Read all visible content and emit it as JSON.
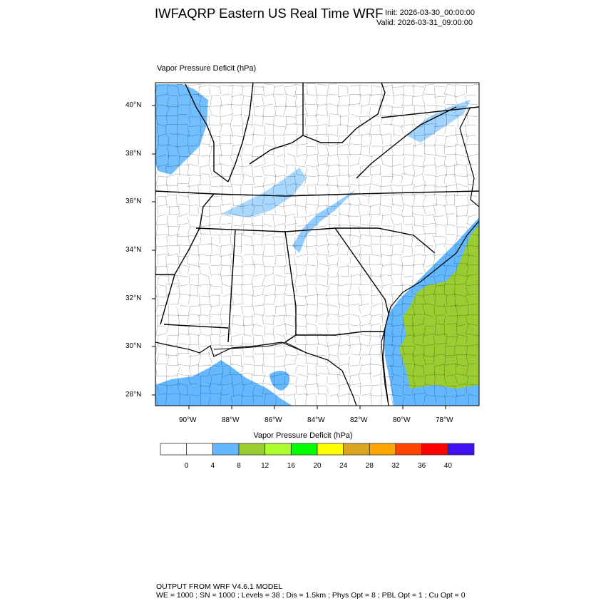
{
  "header": {
    "title": "IWFAQRP Eastern US Real Time WRF",
    "init": "Init: 2026-03-30_00:00:00",
    "valid": "Valid: 2026-03-31_09:00:00"
  },
  "map": {
    "field_label": "Vapor Pressure Deficit   (hPa)",
    "lat_ticks": [
      "40°N",
      "38°N",
      "36°N",
      "34°N",
      "32°N",
      "30°N",
      "28°N"
    ],
    "lon_ticks": [
      "90°W",
      "88°W",
      "86°W",
      "84°W",
      "82°W",
      "80°W",
      "78°W"
    ]
  },
  "colorbar": {
    "title": "Vapor Pressure Deficit  (hPa)",
    "colors": [
      "#ffffff",
      "#ffffff",
      "#63b8ff",
      "#9acd32",
      "#adff2f",
      "#00ff00",
      "#ffff00",
      "#daa520",
      "#ffa500",
      "#ff4500",
      "#ff0000",
      "#4010f0"
    ],
    "labels": [
      "0",
      "4",
      "8",
      "12",
      "16",
      "20",
      "24",
      "28",
      "32",
      "36",
      "40"
    ]
  },
  "footer": {
    "line1": "OUTPUT FROM WRF V4.6.1 MODEL",
    "line2": "WE = 1000 ; SN = 1000 ; Levels = 38 ; Dis = 1.5km ; Phys Opt = 8 ; PBL Opt = 1 ; Cu Opt = 0"
  }
}
